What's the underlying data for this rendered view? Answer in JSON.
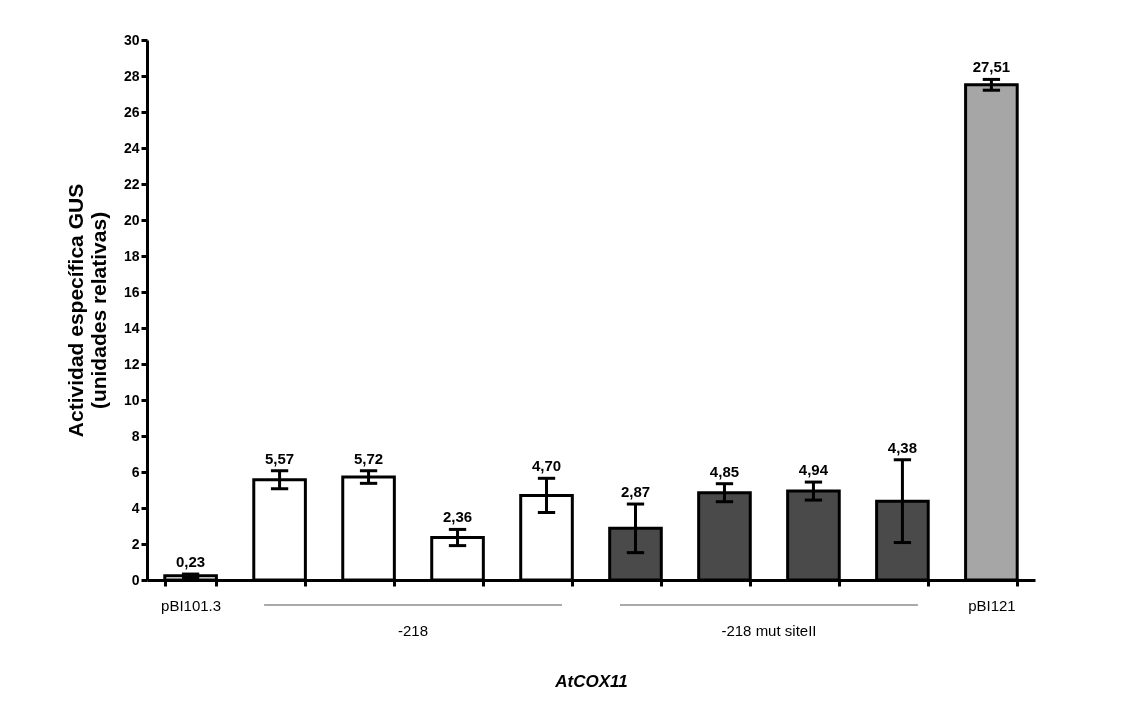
{
  "chart_data": {
    "type": "bar",
    "xlabel": "AtCOX11",
    "ylabel": "Actividad específica GUS\n(unidades relativas)",
    "categories": [
      "pBI101.3",
      null,
      null,
      null,
      null,
      null,
      null,
      null,
      null,
      "pBI121"
    ],
    "values": [
      0.23,
      5.57,
      5.72,
      2.36,
      4.7,
      2.87,
      4.85,
      4.94,
      4.38,
      27.51
    ],
    "errors": [
      0.1,
      0.5,
      0.35,
      0.45,
      0.95,
      1.35,
      0.5,
      0.5,
      2.3,
      0.3
    ],
    "value_labels": [
      "0,23",
      "5,57",
      "5,72",
      "2,36",
      "4,70",
      "2,87",
      "4,85",
      "4,94",
      "4,38",
      "27,51"
    ],
    "colors": [
      "#ffffff",
      "#ffffff",
      "#ffffff",
      "#ffffff",
      "#ffffff",
      "#4a4a4a",
      "#4a4a4a",
      "#4a4a4a",
      "#4a4a4a",
      "#a6a6a6"
    ],
    "annotations": [
      "-218",
      "-218 mut siteII"
    ],
    "ylim": [
      0,
      30
    ],
    "yticks": [
      0,
      2,
      4,
      6,
      8,
      10,
      12,
      14,
      16,
      18,
      20,
      22,
      24,
      26,
      28,
      30
    ],
    "grid": false
  }
}
